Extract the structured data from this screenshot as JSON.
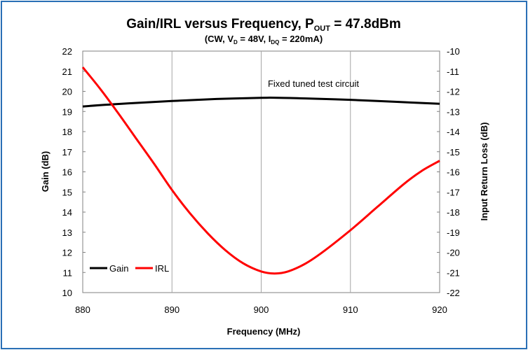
{
  "chart_data": {
    "type": "line",
    "title": {
      "main": "Gain/IRL versus Frequency, P",
      "sub": "OUT",
      "rest": " = 47.8dBm"
    },
    "subtitle": {
      "p1": "(CW, V",
      "s1": "D",
      "p2": " = 48V, I",
      "s2": "DQ",
      "p3": " = 220mA)"
    },
    "xlabel": "Frequency (MHz)",
    "ylabel_left": "Gain (dB)",
    "ylabel_right": "Input Return Loss (dB)",
    "xlim": [
      880,
      920
    ],
    "ylim_left": [
      10,
      22
    ],
    "ylim_right": [
      -22,
      -10
    ],
    "x_ticks": [
      "880",
      "890",
      "900",
      "910",
      "920"
    ],
    "y_left_ticks": [
      "10",
      "11",
      "12",
      "13",
      "14",
      "15",
      "16",
      "17",
      "18",
      "19",
      "20",
      "21",
      "22"
    ],
    "y_right_ticks": [
      "-22",
      "-21",
      "-20",
      "-19",
      "-18",
      "-17",
      "-16",
      "-15",
      "-14",
      "-13",
      "-12",
      "-11",
      "-10"
    ],
    "grid": "vertical",
    "legend_position": "bottom-left",
    "annotation": "Fixed tuned test circuit",
    "series": [
      {
        "name": "Gain",
        "axis": "left",
        "color": "#000000",
        "x": [
          880,
          885,
          890,
          895,
          900,
          902,
          905,
          910,
          915,
          920
        ],
        "y": [
          19.25,
          19.4,
          19.52,
          19.62,
          19.68,
          19.68,
          19.65,
          19.58,
          19.48,
          19.38
        ]
      },
      {
        "name": "IRL",
        "axis": "right",
        "color": "#ff0000",
        "x": [
          880,
          882,
          884,
          886,
          888,
          890,
          892,
          894,
          896,
          898,
          900,
          901.5,
          903,
          905,
          907,
          910,
          913,
          916,
          918,
          920
        ],
        "y": [
          -10.8,
          -11.9,
          -13.1,
          -14.35,
          -15.6,
          -16.9,
          -18.05,
          -19.05,
          -19.9,
          -20.55,
          -20.95,
          -21.05,
          -20.95,
          -20.55,
          -19.95,
          -18.9,
          -17.75,
          -16.6,
          -15.95,
          -15.45
        ]
      }
    ]
  }
}
